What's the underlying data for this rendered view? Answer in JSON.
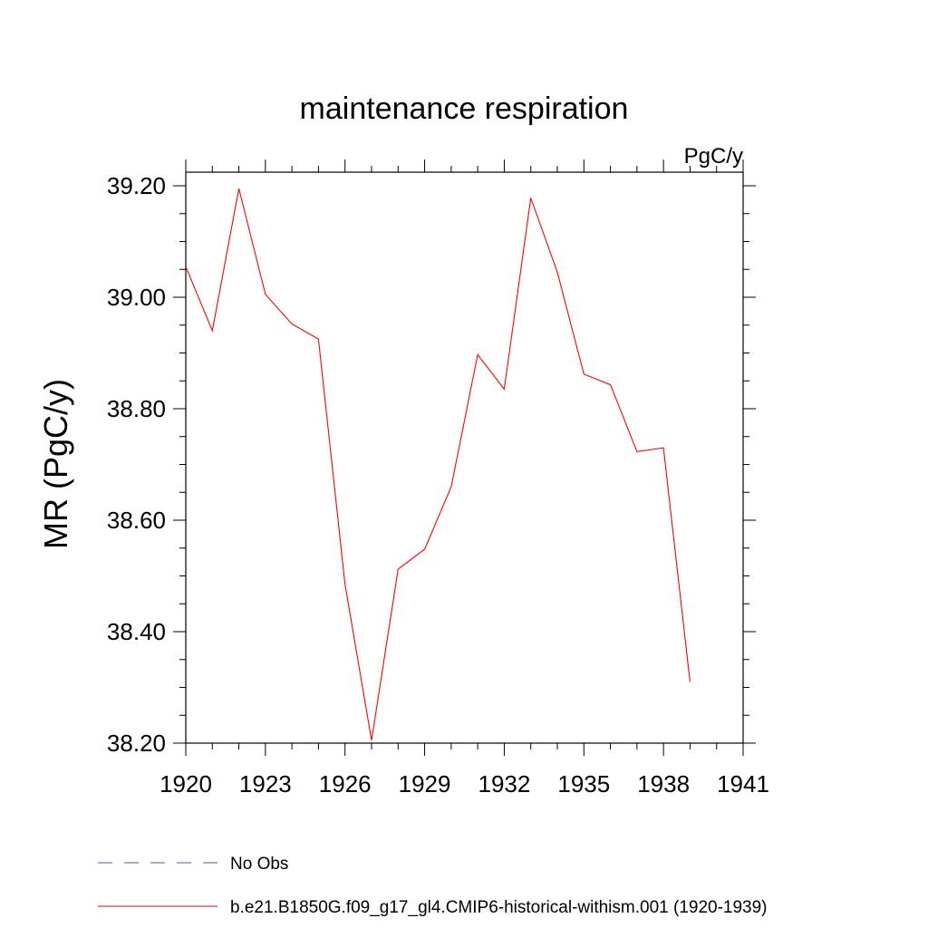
{
  "chart_data": {
    "type": "line",
    "title": "maintenance respiration",
    "units_label": "PgC/y",
    "ylabel": "MR  (PgC/y)",
    "xlabel": "",
    "xlim": [
      1920,
      1941
    ],
    "ylim": [
      38.2,
      39.2
    ],
    "x_ticks": [
      "1920",
      "1923",
      "1926",
      "1929",
      "1932",
      "1935",
      "1938",
      "1941"
    ],
    "y_ticks": [
      "39.20",
      "39.00",
      "38.80",
      "38.60",
      "38.40",
      "38.20"
    ],
    "grid": false,
    "legend_position": "bottom",
    "series": [
      {
        "name": "b.e21.B1850G.f09_g17_gl4.CMIP6-historical-withism.001 (1920-1939)",
        "color": "#ff0000",
        "style": "solid",
        "x": [
          1920,
          1921,
          1922,
          1923,
          1924,
          1925,
          1926,
          1927,
          1928,
          1929,
          1930,
          1931,
          1932,
          1933,
          1934,
          1935,
          1936,
          1937,
          1938,
          1939
        ],
        "values": [
          39.055,
          38.94,
          39.195,
          39.005,
          38.952,
          38.925,
          38.485,
          38.205,
          38.512,
          38.548,
          38.66,
          38.897,
          38.835,
          39.178,
          39.045,
          38.862,
          38.843,
          38.723,
          38.73,
          38.31
        ]
      }
    ],
    "legend": [
      {
        "label": "No Obs",
        "color": "#5a5aa0",
        "style": "dashed"
      },
      {
        "label": "b.e21.B1850G.f09_g17_gl4.CMIP6-historical-withism.001 (1920-1939)",
        "color": "#ff0000",
        "style": "solid"
      }
    ]
  }
}
